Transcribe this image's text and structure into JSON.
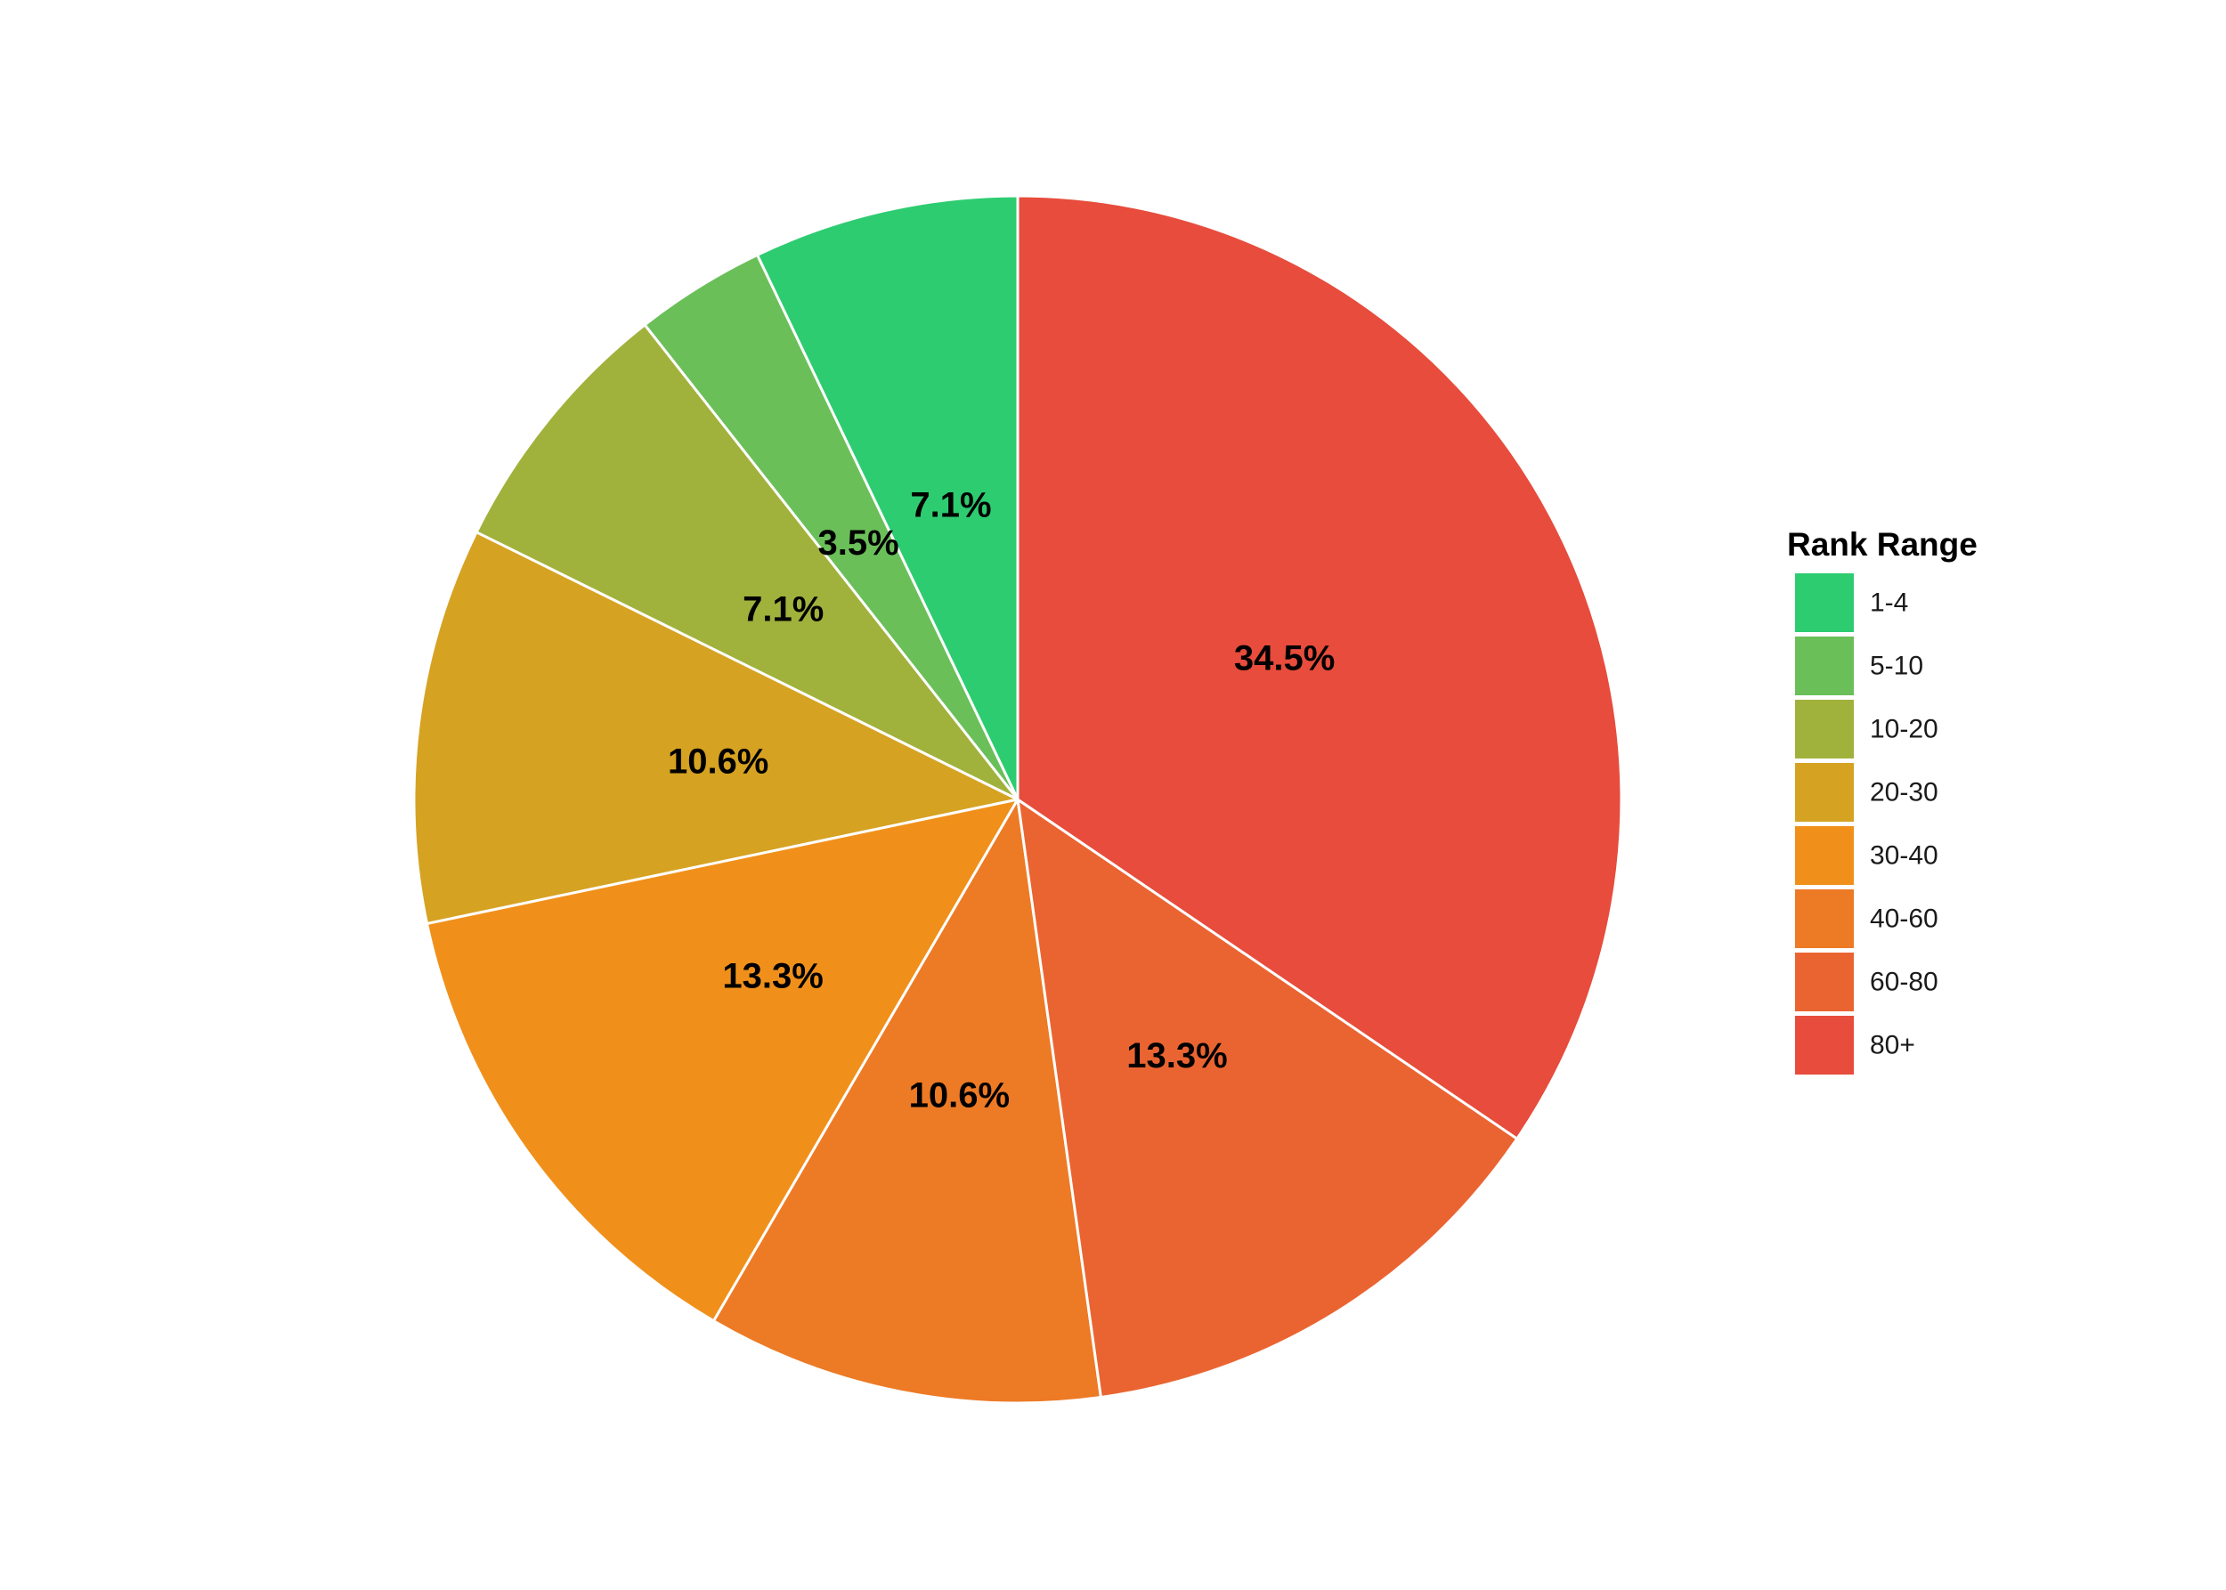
{
  "chart_data": {
    "type": "pie",
    "categories": [
      "1-4",
      "5-10",
      "10-20",
      "20-30",
      "30-40",
      "40-60",
      "60-80",
      "80+"
    ],
    "values": [
      7.1,
      3.5,
      7.1,
      10.6,
      13.3,
      10.6,
      13.3,
      34.5
    ],
    "labels": [
      "7.1%",
      "3.5%",
      "7.1%",
      "10.6%",
      "13.3%",
      "10.6%",
      "13.3%",
      "34.5%"
    ],
    "colors": [
      "#2ecc71",
      "#6abf59",
      "#a1b23c",
      "#d6a222",
      "#f0901b",
      "#ed7a25",
      "#ea6432",
      "#e74c3c"
    ],
    "legend": {
      "title": "Rank Range",
      "position": "right"
    },
    "direction": "counterclockwise-from-top"
  }
}
